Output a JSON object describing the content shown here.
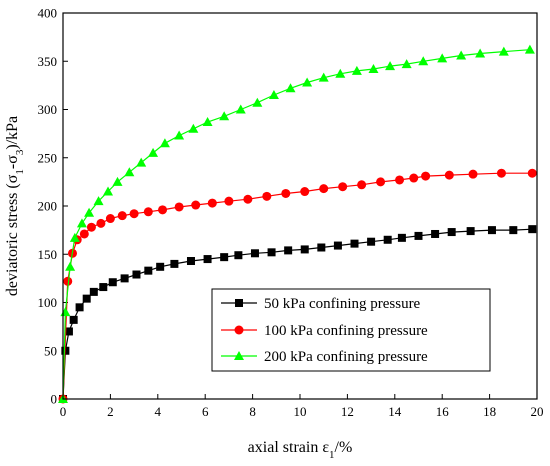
{
  "chart_data": {
    "type": "line",
    "title": "",
    "xlabel": {
      "prefix": "axial strain ε",
      "sub": "1",
      "suffix": "/%"
    },
    "ylabel": {
      "p1": "deviatoric stress (σ",
      "s1": "1",
      "p2": "-σ",
      "s2": "3",
      "p3": ")/kPa"
    },
    "xlim": [
      0,
      20
    ],
    "ylim": [
      0,
      400
    ],
    "xticks": [
      0,
      2,
      4,
      6,
      8,
      10,
      12,
      14,
      16,
      18,
      20
    ],
    "yticks": [
      0,
      50,
      100,
      150,
      200,
      250,
      300,
      350,
      400
    ],
    "grid": false,
    "legend_position": "lower-right",
    "series": [
      {
        "name": "50 kPa confining pressure",
        "color": "#000000",
        "marker": "square",
        "x": [
          0,
          0.1,
          0.25,
          0.45,
          0.7,
          1.0,
          1.3,
          1.7,
          2.1,
          2.6,
          3.1,
          3.6,
          4.1,
          4.7,
          5.4,
          6.1,
          6.8,
          7.4,
          8.1,
          8.8,
          9.5,
          10.2,
          10.9,
          11.6,
          12.3,
          13.0,
          13.7,
          14.3,
          15.0,
          15.7,
          16.4,
          17.2,
          18.1,
          19.0,
          19.8
        ],
        "y": [
          0,
          50,
          70,
          82,
          95,
          104,
          111,
          116,
          121,
          125,
          129,
          133,
          137,
          140,
          143,
          145,
          147,
          149,
          151,
          152,
          154,
          155,
          157,
          159,
          161,
          163,
          165,
          167,
          169,
          171,
          173,
          174,
          175,
          175,
          176
        ]
      },
      {
        "name": "100 kPa confining pressure",
        "color": "#ff0000",
        "marker": "circle",
        "x": [
          0,
          0.2,
          0.4,
          0.6,
          0.9,
          1.2,
          1.6,
          2.0,
          2.5,
          3.0,
          3.6,
          4.2,
          4.9,
          5.6,
          6.3,
          7.0,
          7.8,
          8.6,
          9.4,
          10.2,
          11.0,
          11.8,
          12.6,
          13.4,
          14.2,
          14.8,
          15.3,
          16.3,
          17.3,
          18.5,
          19.8
        ],
        "y": [
          0,
          122,
          151,
          165,
          171,
          178,
          182,
          187,
          190,
          192,
          194,
          196,
          199,
          201,
          203,
          205,
          207,
          210,
          213,
          215,
          218,
          220,
          222,
          225,
          227,
          229,
          231,
          232,
          233,
          234,
          234
        ]
      },
      {
        "name": "200 kPa confining pressure",
        "color": "#00ff00",
        "marker": "triangle",
        "x": [
          0,
          0.1,
          0.3,
          0.5,
          0.8,
          1.1,
          1.5,
          1.9,
          2.3,
          2.8,
          3.3,
          3.8,
          4.3,
          4.9,
          5.5,
          6.1,
          6.8,
          7.5,
          8.2,
          8.9,
          9.6,
          10.3,
          11.0,
          11.7,
          12.4,
          13.1,
          13.8,
          14.5,
          15.2,
          16.0,
          16.8,
          17.6,
          18.6,
          19.7
        ],
        "y": [
          0,
          90,
          137,
          167,
          182,
          193,
          205,
          215,
          225,
          235,
          245,
          255,
          265,
          273,
          280,
          287,
          293,
          300,
          307,
          315,
          322,
          328,
          333,
          337,
          340,
          342,
          345,
          347,
          350,
          353,
          356,
          358,
          360,
          362
        ]
      }
    ]
  }
}
